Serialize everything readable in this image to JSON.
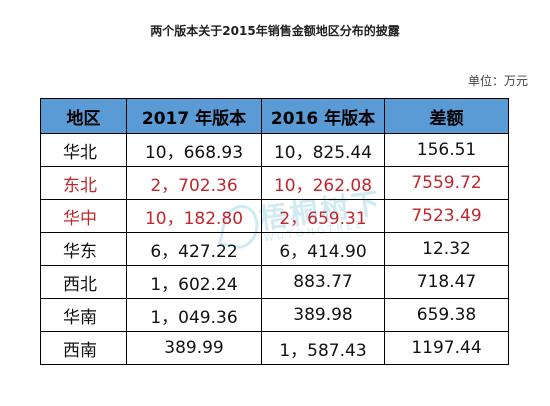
{
  "document": {
    "title": "两个版本关于2015年销售金额地区分布的披露",
    "unit": "单位：万元"
  },
  "watermark": {
    "text_cn": "梧桐树下",
    "text_en": "WUTONGTREE",
    "color": "#5ab7d6"
  },
  "colors": {
    "header_bg": "#5b9bd5",
    "highlight_text": "#c0272d"
  },
  "table": {
    "headers": [
      "地区",
      "2017 年版本",
      "2016 年版本",
      "差额"
    ],
    "rows": [
      {
        "region": "华北",
        "v2017": "10，668.93",
        "v2016": "10，825.44",
        "diff": "156.51",
        "highlight": false
      },
      {
        "region": "东北",
        "v2017": "2，702.36",
        "v2016": "10，262.08",
        "diff": "7559.72",
        "highlight": true
      },
      {
        "region": "华中",
        "v2017": "10，182.80",
        "v2016": "2，659.31",
        "diff": "7523.49",
        "highlight": true
      },
      {
        "region": "华东",
        "v2017": "6，427.22",
        "v2016": "6，414.90",
        "diff": "12.32",
        "highlight": false
      },
      {
        "region": "西北",
        "v2017": "1，602.24",
        "v2016": "883.77",
        "diff": "718.47",
        "highlight": false
      },
      {
        "region": "华南",
        "v2017": "1，049.36",
        "v2016": "389.98",
        "diff": "659.38",
        "highlight": false
      },
      {
        "region": "西南",
        "v2017": "389.99",
        "v2016": "1，587.43",
        "diff": "1197.44",
        "highlight": false
      }
    ]
  }
}
